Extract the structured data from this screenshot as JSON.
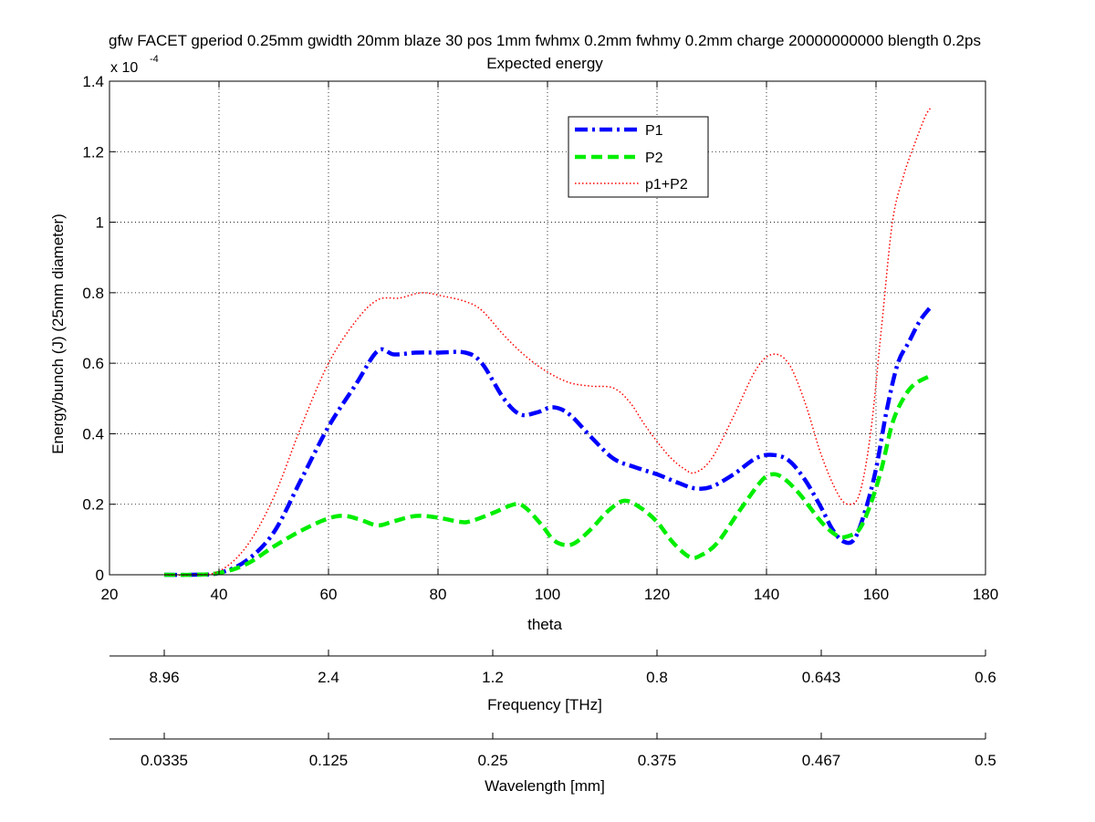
{
  "chart_data": {
    "type": "line",
    "title": "gfw FACET gperiod 0.25mm gwidth 20mm blaze 30 pos 1mm fwhmx 0.2mm fwhmy 0.2mm charge 20000000000 blength 0.2ps",
    "subtitle": "Expected energy",
    "xlabel": "theta",
    "ylabel": "Energy/bunch (J) (25mm diameter)",
    "y_exponent_base": "x 10",
    "y_exponent_power": "-4",
    "xlim": [
      20,
      180
    ],
    "ylim": [
      0,
      1.4
    ],
    "y_scale_factor": 0.0001,
    "grid": true,
    "legend_position": "top-center",
    "xticks": [
      20,
      40,
      60,
      80,
      100,
      120,
      140,
      160,
      180
    ],
    "xtick_labels": [
      "20",
      "40",
      "60",
      "80",
      "100",
      "120",
      "140",
      "160",
      "180"
    ],
    "yticks": [
      0,
      0.2,
      0.4,
      0.6,
      0.8,
      1.0,
      1.2,
      1.4
    ],
    "ytick_labels": [
      "0",
      "0.2",
      "0.4",
      "0.6",
      "0.8",
      "1",
      "1.2",
      "1.4"
    ],
    "series": [
      {
        "name": "P1",
        "color": "#0000ff",
        "style": "dashdot",
        "points": [
          [
            30,
            0
          ],
          [
            35,
            0
          ],
          [
            40,
            0.005
          ],
          [
            45,
            0.04
          ],
          [
            50,
            0.12
          ],
          [
            55,
            0.27
          ],
          [
            60,
            0.42
          ],
          [
            65,
            0.54
          ],
          [
            69,
            0.635
          ],
          [
            72,
            0.625
          ],
          [
            76,
            0.63
          ],
          [
            80,
            0.63
          ],
          [
            85,
            0.63
          ],
          [
            88,
            0.6
          ],
          [
            92,
            0.5
          ],
          [
            95,
            0.455
          ],
          [
            98,
            0.46
          ],
          [
            101,
            0.475
          ],
          [
            104,
            0.455
          ],
          [
            108,
            0.39
          ],
          [
            112,
            0.33
          ],
          [
            116,
            0.305
          ],
          [
            120,
            0.285
          ],
          [
            124,
            0.26
          ],
          [
            127,
            0.245
          ],
          [
            130,
            0.25
          ],
          [
            134,
            0.285
          ],
          [
            138,
            0.33
          ],
          [
            141,
            0.34
          ],
          [
            144,
            0.325
          ],
          [
            147,
            0.27
          ],
          [
            150,
            0.19
          ],
          [
            152,
            0.13
          ],
          [
            154,
            0.095
          ],
          [
            156,
            0.1
          ],
          [
            158,
            0.18
          ],
          [
            160,
            0.3
          ],
          [
            162,
            0.47
          ],
          [
            164,
            0.6
          ],
          [
            166,
            0.66
          ],
          [
            168,
            0.72
          ],
          [
            170,
            0.76
          ]
        ]
      },
      {
        "name": "P2",
        "color": "#00ee00",
        "style": "dashed",
        "points": [
          [
            30,
            0
          ],
          [
            35,
            0
          ],
          [
            40,
            0.005
          ],
          [
            45,
            0.03
          ],
          [
            50,
            0.08
          ],
          [
            55,
            0.125
          ],
          [
            60,
            0.16
          ],
          [
            63,
            0.167
          ],
          [
            66,
            0.155
          ],
          [
            69,
            0.14
          ],
          [
            72,
            0.152
          ],
          [
            76,
            0.167
          ],
          [
            80,
            0.162
          ],
          [
            84,
            0.15
          ],
          [
            86,
            0.152
          ],
          [
            90,
            0.175
          ],
          [
            94,
            0.2
          ],
          [
            96,
            0.19
          ],
          [
            99,
            0.14
          ],
          [
            101,
            0.1
          ],
          [
            103,
            0.085
          ],
          [
            105,
            0.09
          ],
          [
            108,
            0.13
          ],
          [
            111,
            0.18
          ],
          [
            114,
            0.21
          ],
          [
            117,
            0.19
          ],
          [
            120,
            0.15
          ],
          [
            123,
            0.09
          ],
          [
            126,
            0.05
          ],
          [
            128,
            0.055
          ],
          [
            131,
            0.09
          ],
          [
            135,
            0.18
          ],
          [
            139,
            0.265
          ],
          [
            141,
            0.285
          ],
          [
            143,
            0.275
          ],
          [
            146,
            0.23
          ],
          [
            150,
            0.15
          ],
          [
            153,
            0.11
          ],
          [
            155,
            0.11
          ],
          [
            157,
            0.13
          ],
          [
            159,
            0.2
          ],
          [
            161,
            0.3
          ],
          [
            163,
            0.43
          ],
          [
            165,
            0.5
          ],
          [
            167,
            0.54
          ],
          [
            170,
            0.565
          ]
        ]
      },
      {
        "name": "p1+P2",
        "color": "#ff0000",
        "style": "dotted",
        "points": [
          [
            30,
            0
          ],
          [
            35,
            0
          ],
          [
            40,
            0.01
          ],
          [
            45,
            0.08
          ],
          [
            50,
            0.22
          ],
          [
            55,
            0.42
          ],
          [
            60,
            0.6
          ],
          [
            65,
            0.72
          ],
          [
            69,
            0.78
          ],
          [
            73,
            0.785
          ],
          [
            77,
            0.8
          ],
          [
            81,
            0.79
          ],
          [
            85,
            0.775
          ],
          [
            88,
            0.75
          ],
          [
            92,
            0.68
          ],
          [
            96,
            0.62
          ],
          [
            100,
            0.575
          ],
          [
            104,
            0.545
          ],
          [
            108,
            0.535
          ],
          [
            112,
            0.53
          ],
          [
            115,
            0.49
          ],
          [
            118,
            0.42
          ],
          [
            122,
            0.34
          ],
          [
            125,
            0.3
          ],
          [
            127,
            0.29
          ],
          [
            130,
            0.33
          ],
          [
            134,
            0.45
          ],
          [
            138,
            0.58
          ],
          [
            141,
            0.625
          ],
          [
            144,
            0.6
          ],
          [
            147,
            0.49
          ],
          [
            150,
            0.34
          ],
          [
            153,
            0.23
          ],
          [
            155,
            0.2
          ],
          [
            157,
            0.23
          ],
          [
            159,
            0.4
          ],
          [
            161,
            0.7
          ],
          [
            163,
            1.0
          ],
          [
            165,
            1.13
          ],
          [
            167,
            1.22
          ],
          [
            169,
            1.3
          ],
          [
            170,
            1.325
          ]
        ]
      }
    ],
    "secondary_axes": [
      {
        "label": "Frequency [THz]",
        "ticks_at_x": [
          30,
          60,
          90,
          120,
          150,
          180
        ],
        "tick_labels": [
          "8.96",
          "2.4",
          "1.2",
          "0.8",
          "0.643",
          "0.6"
        ]
      },
      {
        "label": "Wavelength [mm]",
        "ticks_at_x": [
          30,
          60,
          90,
          120,
          150,
          180
        ],
        "tick_labels": [
          "0.0335",
          "0.125",
          "0.25",
          "0.375",
          "0.467",
          "0.5"
        ]
      }
    ]
  }
}
